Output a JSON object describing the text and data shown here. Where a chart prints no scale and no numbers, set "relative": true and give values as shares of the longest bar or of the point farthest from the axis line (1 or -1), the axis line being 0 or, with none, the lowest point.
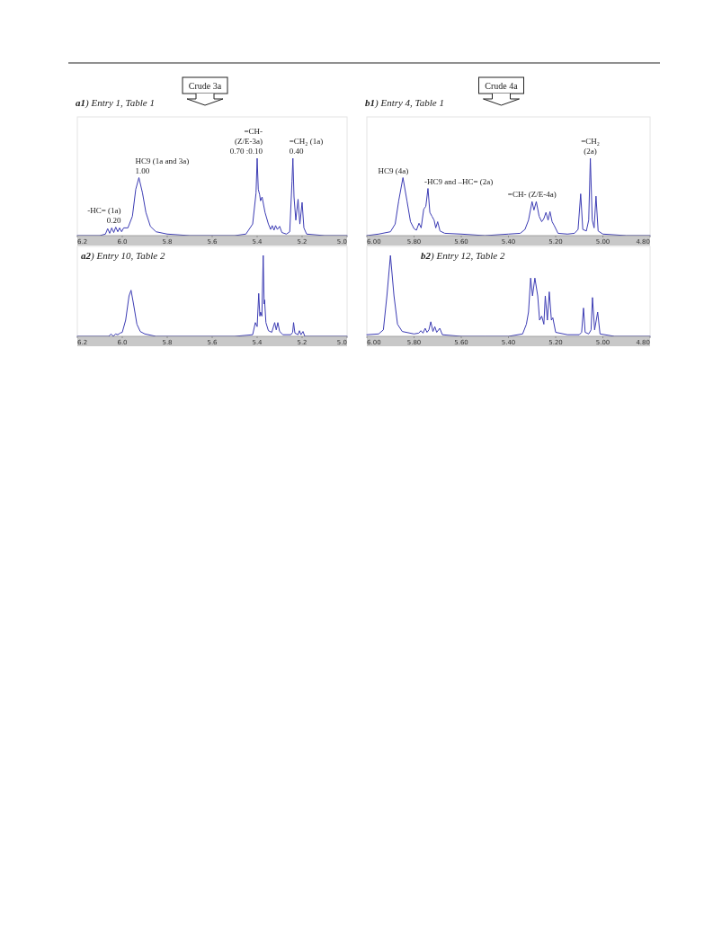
{
  "chart_data": [
    {
      "type": "line",
      "title": "a1) Entry 1, Table 1",
      "color": "#3c3cb4",
      "relative": true,
      "xlim": [
        6.2,
        5.0
      ],
      "xticks": [
        {
          "value": 6.2,
          "label": "6.2"
        },
        {
          "value": 6.0,
          "label": "6.0"
        },
        {
          "value": 5.8,
          "label": "5.8"
        },
        {
          "value": 5.6,
          "label": "5.6"
        },
        {
          "value": 5.4,
          "label": "5.4"
        },
        {
          "value": 5.2,
          "label": "5.2"
        },
        {
          "value": 5.0,
          "label": "5.0"
        }
      ],
      "x": [
        6.2,
        6.1,
        6.075,
        6.065,
        6.056,
        6.047,
        6.038,
        6.029,
        6.02,
        6.012,
        6.003,
        5.994,
        5.975,
        5.955,
        5.94,
        5.926,
        5.91,
        5.895,
        5.875,
        5.85,
        5.8,
        5.7,
        5.6,
        5.5,
        5.45,
        5.42,
        5.405,
        5.4,
        5.395,
        5.389,
        5.385,
        5.378,
        5.365,
        5.35,
        5.34,
        5.333,
        5.325,
        5.318,
        5.31,
        5.3,
        5.29,
        5.27,
        5.255,
        5.245,
        5.241,
        5.236,
        5.228,
        5.218,
        5.21,
        5.2,
        5.192,
        5.18,
        5.1,
        5.0
      ],
      "values": [
        0,
        0,
        0.02,
        0.09,
        0.03,
        0.1,
        0.04,
        0.11,
        0.05,
        0.1,
        0.05,
        0.1,
        0.1,
        0.25,
        0.6,
        0.75,
        0.55,
        0.3,
        0.12,
        0.05,
        0.02,
        0,
        0,
        0,
        0.02,
        0.15,
        0.55,
        1.0,
        0.6,
        0.53,
        0.45,
        0.5,
        0.3,
        0.15,
        0.08,
        0.13,
        0.07,
        0.13,
        0.08,
        0.12,
        0.04,
        0.02,
        0.05,
        0.7,
        1.0,
        0.5,
        0.2,
        0.47,
        0.15,
        0.43,
        0.1,
        0.02,
        0,
        0
      ],
      "annotations": [
        "Crude 3a",
        {
          "text": "-HC= (1a)\n0.20",
          "x": 6.03,
          "y": 0.11
        },
        {
          "text": "HC9 (1a and 3a)\n1.00",
          "x": 5.926,
          "y": 0.75
        },
        {
          "text": "=CH-\n(Z/E-3a)\n0.70 :0.10",
          "x": 5.4,
          "y": 1.0
        },
        {
          "text": "=CH₂ (1a)\n0.40",
          "x": 5.241,
          "y": 1.0
        }
      ]
    },
    {
      "type": "line",
      "title": "b1) Entry 4, Table 1",
      "color": "#3c3cb4",
      "relative": true,
      "xlim": [
        6.0,
        4.8
      ],
      "xticks": [
        {
          "value": 6.0,
          "label": "6.00"
        },
        {
          "value": 5.8,
          "label": "5.80"
        },
        {
          "value": 5.6,
          "label": "5.60"
        },
        {
          "value": 5.4,
          "label": "5.40"
        },
        {
          "value": 5.2,
          "label": "5.20"
        },
        {
          "value": 5.0,
          "label": "5.00"
        },
        {
          "value": 4.8,
          "label": "4.80"
        }
      ],
      "x": [
        6.0,
        5.95,
        5.9,
        5.88,
        5.865,
        5.847,
        5.83,
        5.815,
        5.8,
        5.79,
        5.779,
        5.77,
        5.759,
        5.75,
        5.741,
        5.733,
        5.724,
        5.715,
        5.708,
        5.7,
        5.69,
        5.67,
        5.6,
        5.5,
        5.4,
        5.35,
        5.33,
        5.315,
        5.3,
        5.292,
        5.282,
        5.27,
        5.259,
        5.25,
        5.241,
        5.232,
        5.224,
        5.215,
        5.206,
        5.19,
        5.15,
        5.12,
        5.105,
        5.094,
        5.085,
        5.07,
        5.06,
        5.053,
        5.045,
        5.037,
        5.029,
        5.02,
        5.0,
        4.9,
        4.8
      ],
      "values": [
        0,
        0.02,
        0.05,
        0.15,
        0.45,
        0.75,
        0.45,
        0.18,
        0.09,
        0.07,
        0.16,
        0.1,
        0.34,
        0.38,
        0.61,
        0.3,
        0.25,
        0.2,
        0.1,
        0.18,
        0.06,
        0.03,
        0.02,
        0,
        0.02,
        0.03,
        0.08,
        0.2,
        0.44,
        0.33,
        0.44,
        0.25,
        0.18,
        0.22,
        0.3,
        0.2,
        0.31,
        0.18,
        0.13,
        0.03,
        0.02,
        0.03,
        0.08,
        0.54,
        0.08,
        0.06,
        0.2,
        1.0,
        0.2,
        0.1,
        0.51,
        0.06,
        0.02,
        0,
        0
      ],
      "annotations": [
        "Crude 4a",
        {
          "text": "HC9 (4a)",
          "x": 5.847,
          "y": 0.75
        },
        {
          "text": "-HC9 and –HC= (2a)",
          "x": 5.741,
          "y": 0.61
        },
        {
          "text": "=CH- (Z/E-4a)",
          "x": 5.3,
          "y": 0.44
        },
        {
          "text": "=CH₂\n(2a)",
          "x": 5.053,
          "y": 1.0
        }
      ]
    },
    {
      "type": "line",
      "title": "a2) Entry 10, Table 2",
      "color": "#3c3cb4",
      "relative": true,
      "xlim": [
        6.2,
        5.0
      ],
      "xticks": [
        {
          "value": 6.2,
          "label": "6.2"
        },
        {
          "value": 6.0,
          "label": "6.0"
        },
        {
          "value": 5.8,
          "label": "5.8"
        },
        {
          "value": 5.6,
          "label": "5.6"
        },
        {
          "value": 5.4,
          "label": "5.4"
        },
        {
          "value": 5.2,
          "label": "5.2"
        },
        {
          "value": 5.0,
          "label": "5.0"
        }
      ],
      "x": [
        6.2,
        6.1,
        6.06,
        6.05,
        6.04,
        6.03,
        6.02,
        6.01,
        6.0,
        5.985,
        5.97,
        5.961,
        5.95,
        5.935,
        5.92,
        5.9,
        5.85,
        5.7,
        5.5,
        5.42,
        5.408,
        5.4,
        5.393,
        5.388,
        5.385,
        5.379,
        5.373,
        5.369,
        5.367,
        5.361,
        5.35,
        5.335,
        5.322,
        5.315,
        5.308,
        5.3,
        5.285,
        5.25,
        5.242,
        5.238,
        5.232,
        5.218,
        5.212,
        5.205,
        5.196,
        5.188,
        5.1,
        5.0
      ],
      "values": [
        0,
        0,
        0,
        0.03,
        0,
        0.03,
        0.02,
        0.04,
        0.05,
        0.2,
        0.5,
        0.57,
        0.4,
        0.15,
        0.06,
        0.03,
        0,
        0,
        0,
        0.02,
        0.17,
        0.12,
        0.53,
        0.25,
        0.3,
        0.25,
        1.0,
        0.4,
        0.45,
        0.17,
        0.07,
        0.05,
        0.17,
        0.08,
        0.17,
        0.06,
        0.02,
        0.02,
        0.05,
        0.17,
        0.04,
        0.02,
        0.07,
        0.02,
        0.06,
        0,
        0,
        0
      ]
    },
    {
      "type": "line",
      "title": "b2) Entry 12, Table 2",
      "color": "#3c3cb4",
      "relative": true,
      "xlim": [
        6.0,
        4.8
      ],
      "xticks": [
        {
          "value": 6.0,
          "label": "6.00"
        },
        {
          "value": 5.8,
          "label": "5.80"
        },
        {
          "value": 5.6,
          "label": "5.60"
        },
        {
          "value": 5.4,
          "label": "5.40"
        },
        {
          "value": 5.2,
          "label": "5.20"
        },
        {
          "value": 5.0,
          "label": "5.00"
        },
        {
          "value": 4.8,
          "label": "4.80"
        }
      ],
      "x": [
        6.0,
        5.95,
        5.93,
        5.915,
        5.9,
        5.885,
        5.87,
        5.85,
        5.8,
        5.78,
        5.771,
        5.762,
        5.753,
        5.745,
        5.737,
        5.729,
        5.72,
        5.712,
        5.704,
        5.691,
        5.68,
        5.6,
        5.5,
        5.4,
        5.34,
        5.324,
        5.315,
        5.306,
        5.298,
        5.288,
        5.276,
        5.268,
        5.259,
        5.25,
        5.244,
        5.235,
        5.227,
        5.218,
        5.212,
        5.2,
        5.15,
        5.1,
        5.09,
        5.082,
        5.075,
        5.06,
        5.05,
        5.044,
        5.035,
        5.022,
        5.012,
        4.95,
        4.8
      ],
      "values": [
        0.02,
        0.03,
        0.08,
        0.5,
        1.0,
        0.5,
        0.15,
        0.06,
        0.03,
        0.04,
        0.07,
        0.04,
        0.1,
        0.05,
        0.08,
        0.18,
        0.06,
        0.12,
        0.05,
        0.1,
        0.02,
        0,
        0,
        0,
        0.03,
        0.15,
        0.3,
        0.72,
        0.5,
        0.72,
        0.5,
        0.2,
        0.25,
        0.15,
        0.5,
        0.2,
        0.55,
        0.2,
        0.23,
        0.05,
        0.02,
        0.02,
        0.05,
        0.35,
        0.05,
        0.03,
        0.08,
        0.48,
        0.08,
        0.3,
        0.03,
        0,
        0
      ]
    }
  ]
}
